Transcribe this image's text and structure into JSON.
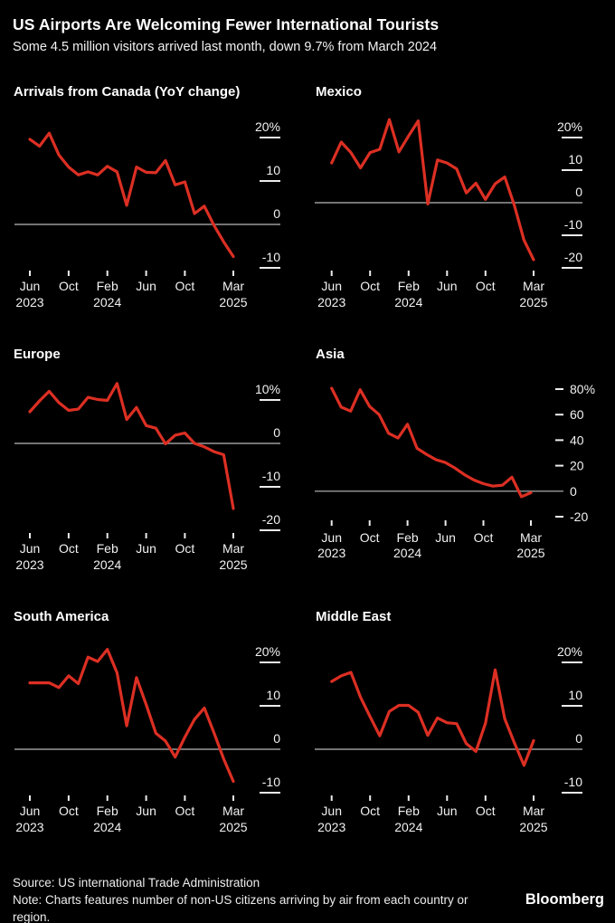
{
  "header": {
    "title": "US Airports Are Welcoming Fewer International Tourists",
    "subtitle": "Some 4.5 million visitors arrived last month, down 9.7% from March 2024"
  },
  "footer": {
    "source": "Source: US international Trade Administration",
    "note": "Note: Charts features number of non-US citizens arriving by air from each country or region.",
    "brand": "Bloomberg"
  },
  "colors": {
    "background": "#000000",
    "line_red": "#dc2f23",
    "zero_line": "#9a9a9a",
    "tick": "#ececec",
    "text": "#f1f1f1"
  },
  "chart_data": {
    "type": "line",
    "layout": "3x2 small multiples, shared x axis Jun 2023 - Mar 2025, monthly",
    "legend": "none",
    "grid": "zero-line only",
    "months": [
      "Jun 2023",
      "Jul 2023",
      "Aug 2023",
      "Sep 2023",
      "Oct 2023",
      "Nov 2023",
      "Dec 2023",
      "Jan 2024",
      "Feb 2024",
      "Mar 2024",
      "Apr 2024",
      "May 2024",
      "Jun 2024",
      "Jul 2024",
      "Aug 2024",
      "Sep 2024",
      "Oct 2024",
      "Nov 2024",
      "Dec 2024",
      "Jan 2025",
      "Feb 2025",
      "Mar 2025"
    ],
    "x_tick_labels": [
      "Jun 2023",
      "Oct",
      "Feb 2024",
      "Jun",
      "Oct",
      "Mar 2025"
    ],
    "x_tick_month_indices": [
      0,
      4,
      8,
      12,
      16,
      21
    ],
    "unit": "% change year over year",
    "charts": [
      {
        "region": "Canada",
        "title": "Arrivals from Canada (YoY change)",
        "ylabel_style": "above",
        "yticks": [
          20,
          10,
          0,
          -10
        ],
        "ytick_labels": [
          "20%",
          "10",
          "0",
          "-10"
        ],
        "ylim": [
          -10,
          20
        ],
        "values": [
          19.6,
          18,
          21,
          16,
          13.2,
          11.4,
          12.1,
          11.4,
          13.4,
          12.1,
          4.4,
          13.2,
          12,
          11.9,
          14.7,
          9.1,
          9.8,
          2.5,
          4.2,
          -0.2,
          -4,
          -7.4
        ]
      },
      {
        "region": "Mexico",
        "title": "Mexico",
        "ylabel_style": "above",
        "yticks": [
          20,
          10,
          0,
          -10,
          -20
        ],
        "ytick_labels": [
          "20%",
          "10",
          "0",
          "-10",
          "-20"
        ],
        "ylim": [
          -20,
          20
        ],
        "values": [
          12.2,
          18.6,
          15.4,
          10.7,
          15.4,
          16.4,
          25.5,
          15.6,
          20.5,
          25.1,
          -0.4,
          13.1,
          12.2,
          10.4,
          3,
          6,
          1,
          5.8,
          7.9,
          -0.8,
          -11.5,
          -17.5
        ]
      },
      {
        "region": "Europe",
        "title": "Europe",
        "ylabel_style": "above",
        "yticks": [
          10,
          0,
          -10,
          -20
        ],
        "ytick_labels": [
          "10%",
          "0",
          "-10",
          "-20"
        ],
        "ylim": [
          -20,
          10
        ],
        "values": [
          7.3,
          9.8,
          12,
          9.4,
          7.6,
          7.9,
          10.6,
          10.1,
          9.9,
          13.8,
          5.5,
          8.3,
          4.1,
          3.5,
          -0.1,
          1.9,
          2.4,
          0,
          -0.8,
          -1.9,
          -2.6,
          -15
        ]
      },
      {
        "region": "Asia",
        "title": "Asia",
        "ylabel_style": "beside",
        "yticks": [
          80,
          60,
          40,
          20,
          0,
          -20
        ],
        "ytick_labels": [
          "80%",
          "60",
          "40",
          "20",
          "0",
          "-20"
        ],
        "ylim": [
          -20,
          80
        ],
        "values": [
          80.7,
          65.9,
          62.8,
          79.5,
          66.4,
          60,
          45.4,
          41.6,
          52.5,
          33.6,
          28.9,
          24.7,
          22.4,
          18.1,
          12.9,
          8.7,
          5.9,
          4,
          4.7,
          11,
          -4.3,
          -1.2
        ]
      },
      {
        "region": "South America",
        "title": "South America",
        "ylabel_style": "above",
        "yticks": [
          20,
          10,
          0,
          -10
        ],
        "ytick_labels": [
          "20%",
          "10",
          "0",
          "-10"
        ],
        "ylim": [
          -10,
          20
        ],
        "values": [
          15.3,
          15.3,
          15.3,
          14.2,
          16.9,
          15.1,
          21.2,
          20.2,
          23,
          17.6,
          5.4,
          16.5,
          10.3,
          3.7,
          1.9,
          -1.8,
          2.8,
          6.9,
          9.5,
          3.8,
          -2.2,
          -7.4
        ]
      },
      {
        "region": "Middle East",
        "title": "Middle East",
        "ylabel_style": "above",
        "yticks": [
          20,
          10,
          0,
          -10
        ],
        "ytick_labels": [
          "20%",
          "10",
          "0",
          "-10"
        ],
        "ylim": [
          -10,
          20
        ],
        "values": [
          15.6,
          16.9,
          17.7,
          12,
          7.5,
          3.1,
          8.7,
          10.1,
          10.1,
          8.5,
          3.2,
          7.2,
          6.1,
          5.9,
          1.3,
          -0.5,
          6,
          18.3,
          7,
          1.5,
          -3.7,
          2
        ]
      }
    ]
  }
}
